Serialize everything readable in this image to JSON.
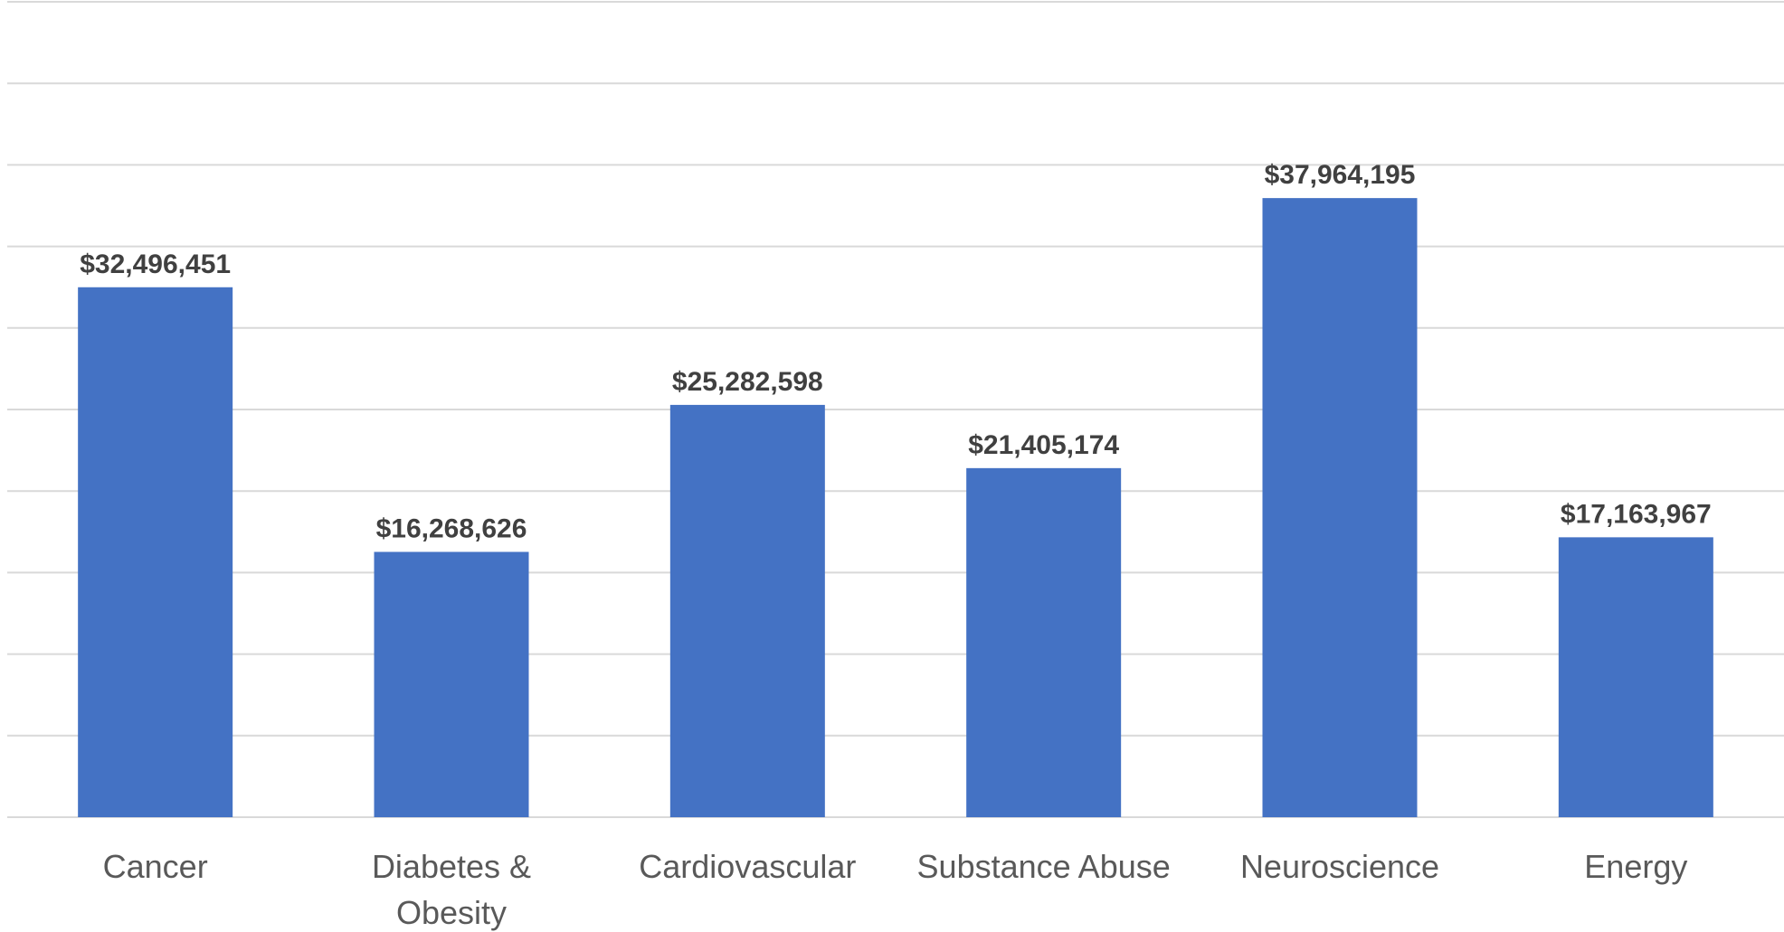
{
  "chart_data": {
    "type": "bar",
    "title": "",
    "xlabel": "",
    "ylabel": "",
    "categories": [
      [
        "Cancer"
      ],
      [
        "Diabetes &",
        "Obesity"
      ],
      [
        "Cardiovascular"
      ],
      [
        "Substance Abuse"
      ],
      [
        "Neuroscience"
      ],
      [
        "Energy"
      ]
    ],
    "values": [
      32496451,
      16268626,
      25282598,
      21405174,
      37964195,
      17163967
    ],
    "value_labels": [
      "$32,496,451",
      "$16,268,626",
      "$25,282,598",
      "$21,405,174",
      "$37,964,195",
      "$17,163,967"
    ],
    "ylim": [
      0,
      50000000
    ],
    "gridline_step": 5000000,
    "grid": true,
    "legend": "none",
    "bar_color": "#4472c4",
    "gridline_color": "#d9d9d9",
    "label_color": "#404040",
    "tick_color": "#595959"
  }
}
